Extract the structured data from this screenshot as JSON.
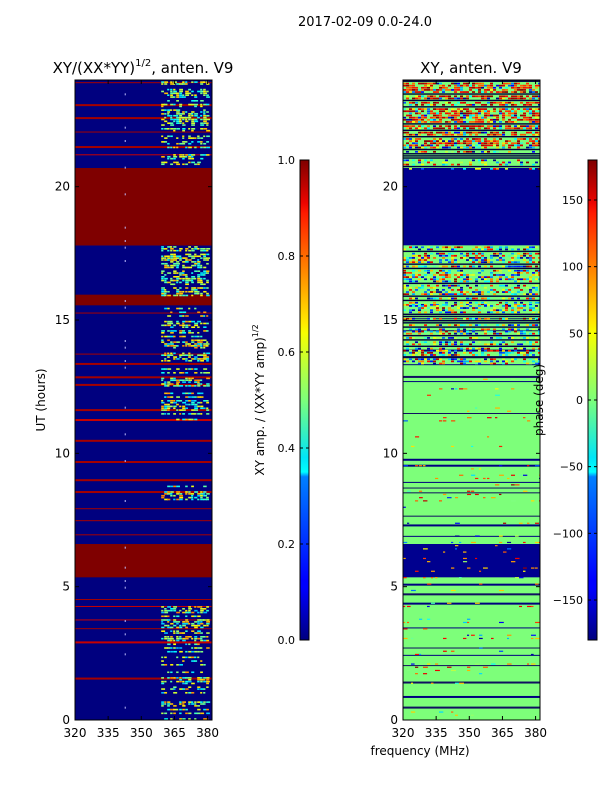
{
  "figure": {
    "suptitle": "2017-02-09 0.0-24.0",
    "shared_xlabel": "frequency (MHz)"
  },
  "chart_data": [
    {
      "type": "heatmap",
      "title_main": "XY/(XX*YY)",
      "title_exp": "1/2",
      "title_tail": ", anten. V9",
      "ylabel": "UT (hours)",
      "xlim": [
        320,
        382
      ],
      "ylim": [
        0,
        24
      ],
      "xticks": [
        "320",
        "335",
        "350",
        "365",
        "380"
      ],
      "xtick_values": [
        320,
        335,
        350,
        365,
        380
      ],
      "yticks": [
        "0",
        "5",
        "10",
        "15",
        "20"
      ],
      "ytick_values": [
        0,
        5,
        10,
        15,
        20
      ],
      "solid_bands_hours": [
        [
          15.55,
          15.95
        ],
        [
          17.8,
          20.7
        ],
        [
          5.35,
          6.6
        ]
      ],
      "active_channel_range_mhz": [
        359,
        380
      ],
      "colorbar": {
        "label_main": "XY amp. / (XX*YY amp)",
        "label_exp": "1/2",
        "range": [
          0.0,
          1.0
        ],
        "ticks": [
          "0.0",
          "0.2",
          "0.4",
          "0.6",
          "0.8",
          "1.0"
        ],
        "tick_values": [
          0.0,
          0.2,
          0.4,
          0.6,
          0.8,
          1.0
        ]
      }
    },
    {
      "type": "heatmap",
      "title": "XY, anten. V9",
      "ylabel": "",
      "xlim": [
        320,
        382
      ],
      "ylim": [
        0,
        24
      ],
      "xticks": [
        "320",
        "335",
        "350",
        "365",
        "380"
      ],
      "xtick_values": [
        320,
        335,
        350,
        365,
        380
      ],
      "yticks": [
        "0",
        "5",
        "10",
        "15",
        "20"
      ],
      "ytick_values": [
        0,
        5,
        10,
        15,
        20
      ],
      "solid_bands_hours": [
        [
          17.8,
          20.7
        ],
        [
          5.35,
          6.6
        ]
      ],
      "colorbar": {
        "label": "phase (deg)",
        "range": [
          -180,
          180
        ],
        "ticks": [
          "−150",
          "−100",
          "−50",
          "0",
          "50",
          "100",
          "150"
        ],
        "tick_values": [
          -150,
          -100,
          -50,
          0,
          50,
          100,
          150
        ]
      }
    }
  ]
}
